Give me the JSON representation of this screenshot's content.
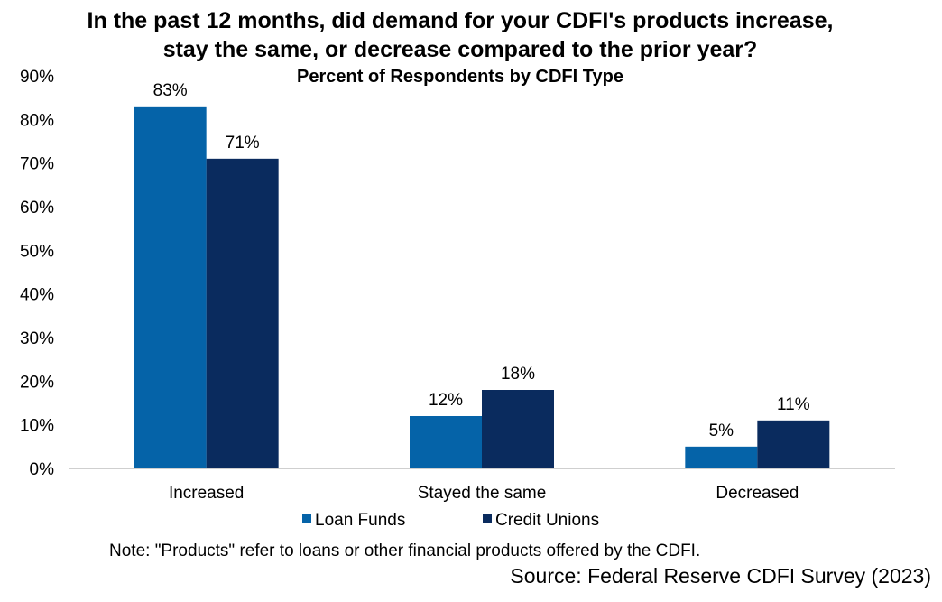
{
  "chart_data": {
    "type": "bar",
    "title": "In the past 12 months, did demand for your CDFI's products increase, stay the same, or decrease compared to the prior year?",
    "title_lines": [
      "In the past 12 months, did demand for your CDFI's products increase,",
      "stay the same, or decrease compared to the prior year?"
    ],
    "subtitle": "Percent of Respondents by CDFI Type",
    "categories": [
      "Increased",
      "Stayed the same",
      "Decreased"
    ],
    "series": [
      {
        "name": "Loan Funds",
        "color": "#0563a8",
        "values": [
          83,
          12,
          5
        ],
        "labels": [
          "83%",
          "12%",
          "5%"
        ]
      },
      {
        "name": "Credit Unions",
        "color": "#0a2b5e",
        "values": [
          71,
          18,
          11
        ],
        "labels": [
          "71%",
          "18%",
          "11%"
        ]
      }
    ],
    "ylim": [
      0,
      90
    ],
    "y_ticks": [
      "0%",
      "10%",
      "20%",
      "30%",
      "40%",
      "50%",
      "60%",
      "70%",
      "80%",
      "90%"
    ],
    "legend": "bottom",
    "grid": false
  },
  "note": "Note: \"Products\" refer to loans or other financial products offered by the CDFI.",
  "source": "Source: Federal Reserve CDFI Survey (2023)"
}
